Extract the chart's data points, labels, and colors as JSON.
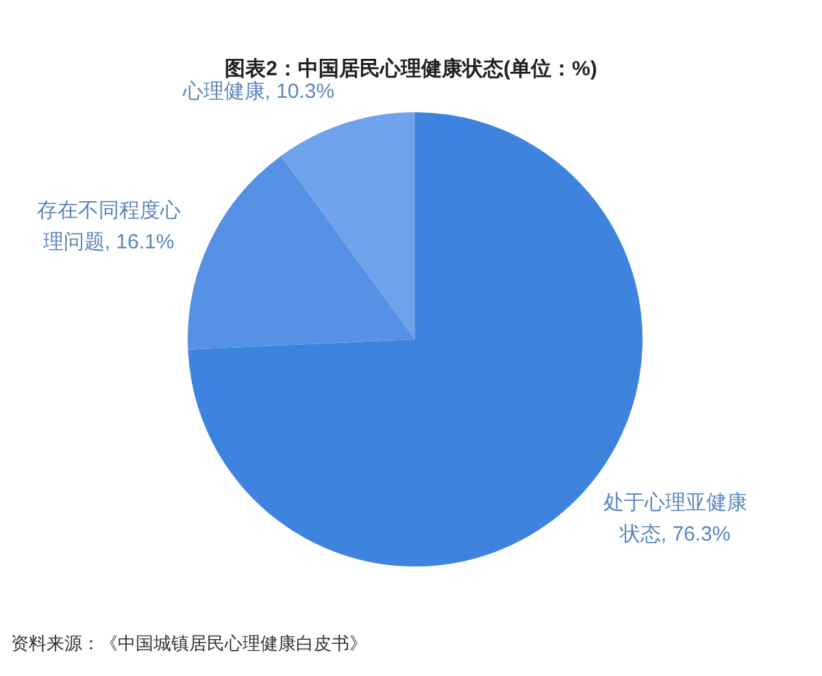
{
  "chart_data": {
    "type": "pie",
    "title": "图表2：中国居民心理健康状态(单位：%)",
    "categories": [
      "处于心理亚健康状态",
      "存在不同程度心理问题",
      "心理健康"
    ],
    "values": [
      76.3,
      16.1,
      10.3
    ],
    "value_labels": [
      "76.3%",
      "16.1%",
      "10.3%"
    ],
    "colors": [
      "#3e84df",
      "#5592e5",
      "#6fa2ea"
    ],
    "annotations": [
      "资料来源：《中国城镇居民心理健康白皮书》"
    ]
  }
}
